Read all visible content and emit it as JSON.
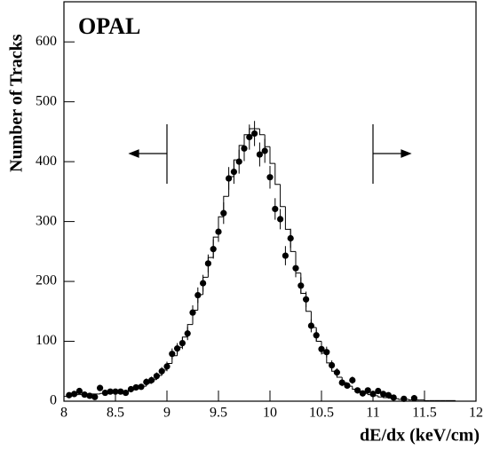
{
  "chart_data": {
    "type": "histogram",
    "title": "OPAL",
    "x_label": "dE/dx (keV/cm)",
    "y_label": "Number of Tracks",
    "color": "#000000",
    "bins": [
      8.0,
      8.05,
      8.1,
      8.15,
      8.2,
      8.25,
      8.3,
      8.35,
      8.4,
      8.45,
      8.5,
      8.55,
      8.6,
      8.65,
      8.7,
      8.75,
      8.8,
      8.85,
      8.9,
      8.95,
      9.0,
      9.05,
      9.1,
      9.15,
      9.2,
      9.25,
      9.3,
      9.35,
      9.4,
      9.45,
      9.5,
      9.55,
      9.6,
      9.65,
      9.7,
      9.75,
      9.8,
      9.85,
      9.9,
      9.95,
      10.0,
      10.05,
      10.1,
      10.15,
      10.2,
      10.25,
      10.3,
      10.35,
      10.4,
      10.45,
      10.5,
      10.55,
      10.6,
      10.65,
      10.7,
      10.75,
      10.8,
      10.85,
      10.9,
      10.95,
      11.0,
      11.05,
      11.1,
      11.15,
      11.2,
      11.25,
      11.3,
      11.35,
      11.4,
      11.45,
      11.5,
      11.55,
      11.6,
      11.65,
      11.7,
      11.75,
      11.8,
      11.85,
      11.9,
      11.95,
      12.0
    ],
    "counts": [
      8,
      10,
      11,
      11,
      11,
      12,
      12,
      13,
      13,
      14,
      15,
      16,
      17,
      19,
      22,
      25,
      30,
      36,
      43,
      52,
      63,
      76,
      90,
      107,
      128,
      152,
      178,
      207,
      240,
      274,
      308,
      342,
      375,
      403,
      427,
      445,
      455,
      455,
      445,
      425,
      397,
      362,
      325,
      287,
      250,
      214,
      180,
      150,
      123,
      100,
      80,
      64,
      50,
      40,
      31,
      25,
      20,
      16,
      13,
      11,
      9,
      7,
      6,
      5,
      4,
      3,
      3,
      2,
      2,
      2,
      1,
      1,
      1,
      1,
      1,
      1,
      0,
      0,
      0,
      0
    ],
    "points": {
      "x": [
        8.05,
        8.1,
        8.15,
        8.2,
        8.25,
        8.3,
        8.35,
        8.4,
        8.45,
        8.5,
        8.55,
        8.6,
        8.65,
        8.7,
        8.75,
        8.8,
        8.85,
        8.9,
        8.95,
        9.0,
        9.05,
        9.1,
        9.15,
        9.2,
        9.25,
        9.3,
        9.35,
        9.4,
        9.45,
        9.5,
        9.55,
        9.6,
        9.65,
        9.7,
        9.75,
        9.8,
        9.85,
        9.9,
        9.95,
        10.0,
        10.05,
        10.1,
        10.15,
        10.2,
        10.25,
        10.3,
        10.35,
        10.4,
        10.45,
        10.5,
        10.55,
        10.6,
        10.65,
        10.7,
        10.75,
        10.8,
        10.85,
        10.9,
        10.95,
        11.0,
        11.05,
        11.1,
        11.15,
        11.2,
        11.3,
        11.4
      ],
      "values": [
        10,
        12,
        17,
        11,
        9,
        7,
        22,
        14,
        16,
        16,
        16,
        14,
        20,
        23,
        24,
        32,
        35,
        42,
        50,
        58,
        79,
        88,
        97,
        113,
        148,
        177,
        197,
        230,
        254,
        283,
        314,
        372,
        383,
        400,
        422,
        441,
        447,
        412,
        418,
        374,
        321,
        304,
        243,
        272,
        222,
        193,
        170,
        126,
        110,
        87,
        82,
        60,
        48,
        31,
        26,
        35,
        18,
        13,
        18,
        12,
        17,
        12,
        10,
        6,
        4,
        5
      ],
      "errors": [
        3,
        3,
        4,
        3,
        3,
        3,
        5,
        4,
        4,
        4,
        4,
        4,
        4,
        5,
        5,
        6,
        6,
        6,
        7,
        8,
        9,
        9,
        10,
        11,
        12,
        13,
        14,
        15,
        16,
        17,
        18,
        19,
        20,
        20,
        21,
        21,
        21,
        20,
        20,
        19,
        18,
        17,
        16,
        16,
        15,
        14,
        13,
        11,
        10,
        9,
        9,
        8,
        7,
        6,
        5,
        6,
        4,
        4,
        4,
        3,
        4,
        3,
        3,
        2,
        2,
        2
      ]
    },
    "xlim": [
      8,
      12
    ],
    "ylim": [
      0,
      667
    ],
    "xticks": [
      8,
      8.5,
      9,
      9.5,
      10,
      10.5,
      11,
      11.5,
      12
    ],
    "yticks": [
      0,
      100,
      200,
      300,
      400,
      500,
      600
    ]
  }
}
